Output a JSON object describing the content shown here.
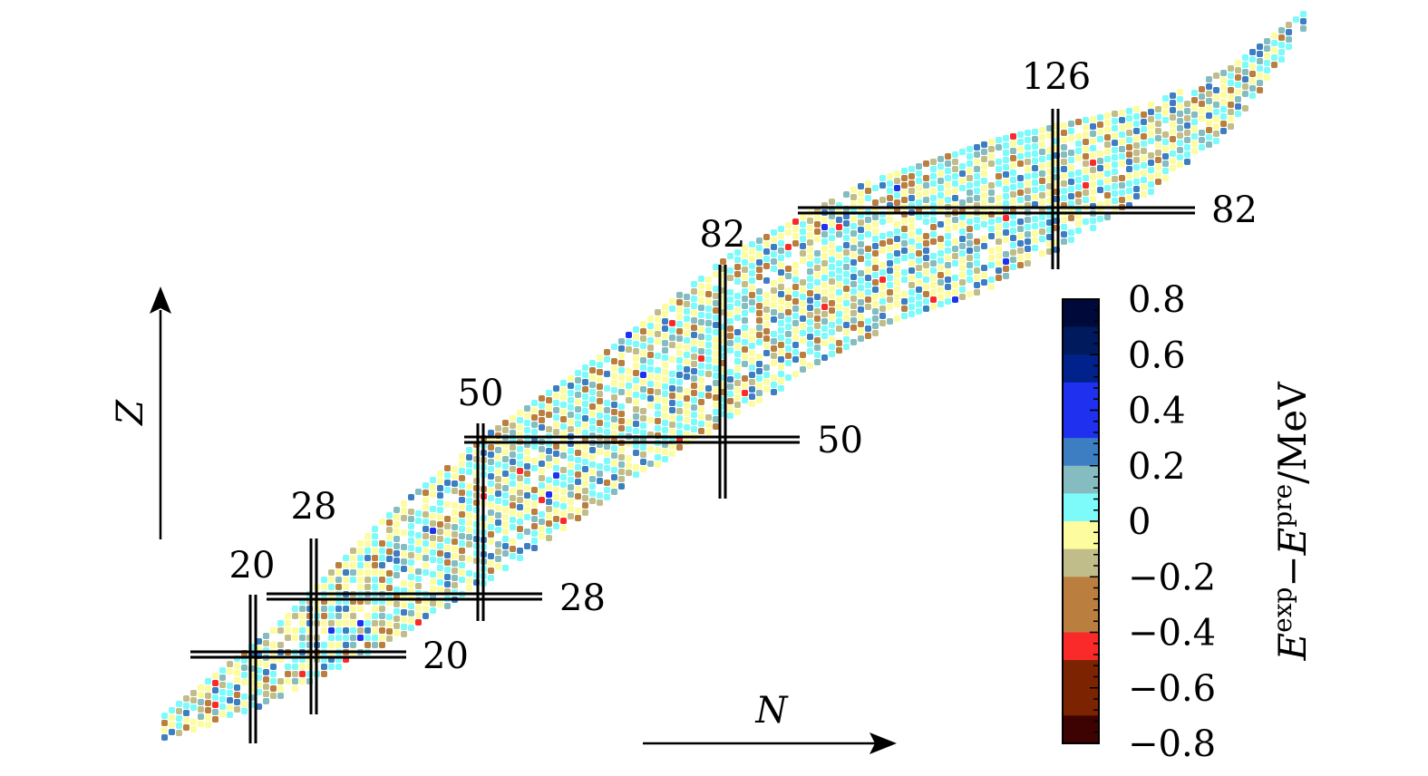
{
  "chart_data": {
    "type": "heatmap",
    "title": "",
    "xlabel": "N",
    "ylabel": "Z",
    "colorbar": {
      "label_main": "E",
      "label_sup1": "exp",
      "label_minus": "−",
      "label_sup2": "pre",
      "label_unit": "/MeV",
      "range": [
        -0.8,
        0.8
      ],
      "tick_labels": [
        "0.8",
        "0.6",
        "0.4",
        "0.2",
        "0",
        "−0.2",
        "−0.4",
        "−0.6",
        "−0.8"
      ],
      "bins": [
        {
          "from": 0.7,
          "to": 0.8,
          "color": "#000a3a"
        },
        {
          "from": 0.6,
          "to": 0.7,
          "color": "#001a5e"
        },
        {
          "from": 0.5,
          "to": 0.6,
          "color": "#00228a"
        },
        {
          "from": 0.4,
          "to": 0.5,
          "color": "#1f30ef"
        },
        {
          "from": 0.3,
          "to": 0.4,
          "color": "#1f30ef"
        },
        {
          "from": 0.2,
          "to": 0.3,
          "color": "#3d7dc2"
        },
        {
          "from": 0.1,
          "to": 0.2,
          "color": "#85bcbf"
        },
        {
          "from": 0.0,
          "to": 0.1,
          "color": "#7dfbfb"
        },
        {
          "from": -0.1,
          "to": 0.0,
          "color": "#fdfc9e"
        },
        {
          "from": -0.2,
          "to": -0.1,
          "color": "#c1bd8a"
        },
        {
          "from": -0.3,
          "to": -0.2,
          "color": "#ba7f3f"
        },
        {
          "from": -0.4,
          "to": -0.3,
          "color": "#ba7f3f"
        },
        {
          "from": -0.5,
          "to": -0.4,
          "color": "#fb2a2a"
        },
        {
          "from": -0.6,
          "to": -0.5,
          "color": "#7c2402"
        },
        {
          "from": -0.7,
          "to": -0.6,
          "color": "#7c2402"
        },
        {
          "from": -0.8,
          "to": -0.7,
          "color": "#3d0202"
        }
      ]
    },
    "magic_numbers": {
      "neutron": [
        "20",
        "28",
        "50",
        "82",
        "126"
      ],
      "proton": [
        "20",
        "28",
        "50",
        "82"
      ]
    },
    "grid": false,
    "legend": "colorbar-right"
  }
}
